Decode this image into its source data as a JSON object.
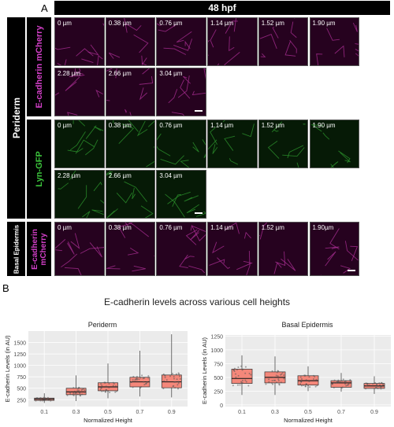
{
  "panel_a": {
    "letter": "A",
    "header": "48 hpf",
    "outer_label": "Periderm",
    "row_labels": [
      "E-cadherin mCherry",
      "Lyn-GFP",
      "Basal Epidermis",
      "E-cadherin mCherry"
    ],
    "rows": [
      {
        "channel": "magenta",
        "tiles": [
          "0 µm",
          "0.38 µm",
          "0.76 µm",
          "1.14 µm",
          "1.52 µm",
          "1.90 µm"
        ]
      },
      {
        "channel": "magenta",
        "tiles": [
          "2.28 µm",
          "2.66 µm",
          "3.04 µm"
        ]
      },
      {
        "channel": "green",
        "tiles": [
          "0 µm",
          "0.38 µm",
          "0.76 µm",
          "1.14 µm",
          "1.52 µm",
          "1.90 µm"
        ]
      },
      {
        "channel": "green",
        "tiles": [
          "2.28 µm",
          "2.66 µm",
          "3.04 µm"
        ]
      },
      {
        "channel": "magenta",
        "tiles": [
          "0 µm",
          "0.38 µm",
          "0.76 µm",
          "1.14 µm",
          "1.52 µm",
          "1.90µm"
        ]
      }
    ],
    "colors": {
      "magenta_edge": "#b0309a",
      "green_edge": "#2f9a2f"
    }
  },
  "panel_b": {
    "letter": "B",
    "title": "E-cadherin levels across various cell heights"
  },
  "chart_data": [
    {
      "type": "box",
      "title": "Periderm",
      "xlabel": "Normalized Height",
      "ylabel": "E-cadherin Levels (in AU)",
      "categories": [
        "0.1",
        "0.3",
        "0.5",
        "0.7",
        "0.9"
      ],
      "ylim": [
        100,
        1750
      ],
      "yticks": [
        250,
        500,
        750,
        1000,
        1250,
        1500
      ],
      "boxes": [
        {
          "x": "0.1",
          "q1": 235,
          "median": 262,
          "q3": 285,
          "min": 180,
          "max": 390
        },
        {
          "x": "0.3",
          "q1": 360,
          "median": 420,
          "q3": 500,
          "min": 220,
          "max": 780
        },
        {
          "x": "0.5",
          "q1": 445,
          "median": 530,
          "q3": 620,
          "min": 280,
          "max": 1040
        },
        {
          "x": "0.7",
          "q1": 530,
          "median": 640,
          "q3": 740,
          "min": 320,
          "max": 1320
        },
        {
          "x": "0.9",
          "q1": 510,
          "median": 640,
          "q3": 790,
          "min": 300,
          "max": 1680
        }
      ],
      "box_color": "#f4877a",
      "grid": true
    },
    {
      "type": "box",
      "title": "Basal Epidermis",
      "xlabel": "Normalized Height",
      "ylabel": "E-cadherin Levels (in AU)",
      "categories": [
        "0.1",
        "0.3",
        "0.5",
        "0.7",
        "0.9"
      ],
      "ylim": [
        -30,
        1270
      ],
      "yticks": [
        0,
        250,
        500,
        750,
        1000,
        1250
      ],
      "boxes": [
        {
          "x": "0.1",
          "q1": 390,
          "median": 480,
          "q3": 650,
          "min": 180,
          "max": 900
        },
        {
          "x": "0.3",
          "q1": 400,
          "median": 500,
          "q3": 600,
          "min": 180,
          "max": 880
        },
        {
          "x": "0.5",
          "q1": 360,
          "median": 440,
          "q3": 530,
          "min": 250,
          "max": 700
        },
        {
          "x": "0.7",
          "q1": 320,
          "median": 400,
          "q3": 440,
          "min": 240,
          "max": 580
        },
        {
          "x": "0.9",
          "q1": 300,
          "median": 345,
          "q3": 390,
          "min": 200,
          "max": 520
        }
      ],
      "box_color": "#f4877a",
      "grid": true
    }
  ]
}
